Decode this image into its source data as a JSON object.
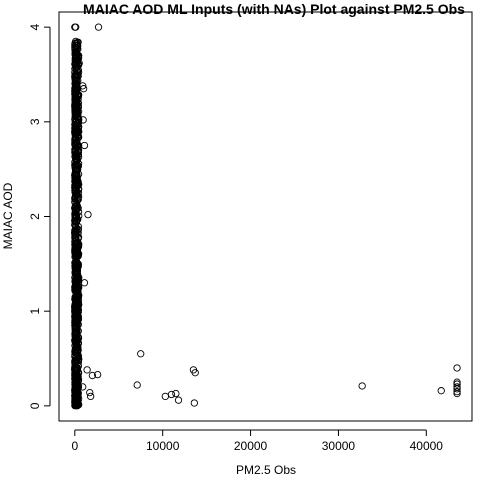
{
  "chart_data": {
    "type": "scatter",
    "title": "MAIAC AOD ML Inputs (with NAs) Plot against PM2.5 Obs",
    "xlabel": "PM2.5 Obs",
    "ylabel": "MAIAC AOD",
    "xlim": [
      -1800,
      45200
    ],
    "ylim": [
      -0.16,
      4.16
    ],
    "x_ticks": [
      0,
      10000,
      20000,
      30000,
      40000
    ],
    "x_tick_labels": [
      "0",
      "10000",
      "20000",
      "30000",
      "40000"
    ],
    "y_ticks": [
      0,
      1,
      2,
      3,
      4
    ],
    "y_tick_labels": [
      "0",
      "1",
      "2",
      "3",
      "4"
    ],
    "grid": false,
    "marker": "open-circle",
    "point_color": "#000000",
    "dense_band": {
      "description_range_x": [
        0,
        450
      ],
      "y_range": [
        0,
        3.85
      ]
    },
    "points": [
      {
        "x": 0,
        "y": 4.0
      },
      {
        "x": 100,
        "y": 4.0
      },
      {
        "x": 2700,
        "y": 4.0
      },
      {
        "x": 100,
        "y": 3.85
      },
      {
        "x": 250,
        "y": 3.78
      },
      {
        "x": 500,
        "y": 3.62
      },
      {
        "x": 900,
        "y": 3.38
      },
      {
        "x": 1000,
        "y": 3.35
      },
      {
        "x": 950,
        "y": 3.02
      },
      {
        "x": 1100,
        "y": 2.75
      },
      {
        "x": 1500,
        "y": 2.02
      },
      {
        "x": 1100,
        "y": 1.3
      },
      {
        "x": 1400,
        "y": 0.38
      },
      {
        "x": 2600,
        "y": 0.33
      },
      {
        "x": 2000,
        "y": 0.32
      },
      {
        "x": 1700,
        "y": 0.14
      },
      {
        "x": 1800,
        "y": 0.1
      },
      {
        "x": 900,
        "y": 0.2
      },
      {
        "x": 7500,
        "y": 0.55
      },
      {
        "x": 7100,
        "y": 0.22
      },
      {
        "x": 10300,
        "y": 0.1
      },
      {
        "x": 11000,
        "y": 0.12
      },
      {
        "x": 11500,
        "y": 0.13
      },
      {
        "x": 11800,
        "y": 0.06
      },
      {
        "x": 13500,
        "y": 0.38
      },
      {
        "x": 13700,
        "y": 0.35
      },
      {
        "x": 13600,
        "y": 0.03
      },
      {
        "x": 32700,
        "y": 0.21
      },
      {
        "x": 41700,
        "y": 0.16
      },
      {
        "x": 43500,
        "y": 0.4
      },
      {
        "x": 43500,
        "y": 0.25
      },
      {
        "x": 43500,
        "y": 0.23
      },
      {
        "x": 43500,
        "y": 0.2
      },
      {
        "x": 43500,
        "y": 0.18
      },
      {
        "x": 43500,
        "y": 0.15
      },
      {
        "x": 43500,
        "y": 0.13
      }
    ]
  }
}
